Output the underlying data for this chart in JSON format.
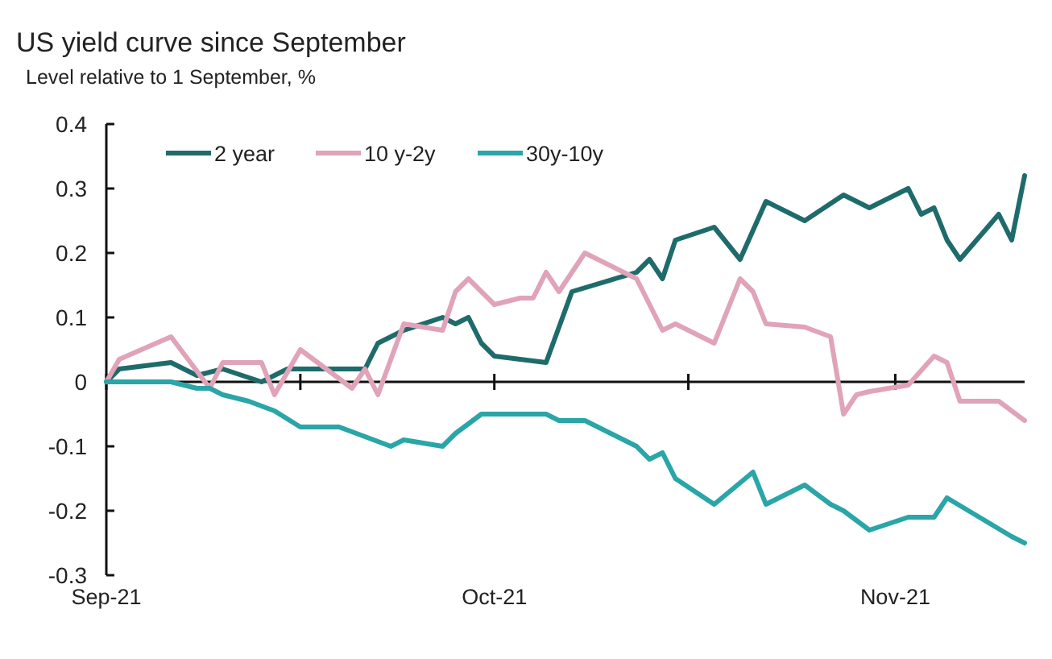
{
  "chart_data": {
    "type": "line",
    "title": "US yield curve since September",
    "subtitle": "Level relative to 1 September, %",
    "xlim": [
      "2021-09-01",
      "2021-11-11"
    ],
    "xticks": [
      {
        "value": "2021-09-01",
        "label": "Sep-21"
      },
      {
        "value": "2021-09-16",
        "label": null
      },
      {
        "value": "2021-10-01",
        "label": "Oct-21"
      },
      {
        "value": "2021-10-16",
        "label": null
      },
      {
        "value": "2021-11-01",
        "label": "Nov-21"
      }
    ],
    "ylim": [
      -0.3,
      0.4
    ],
    "yticks": [
      -0.3,
      -0.2,
      -0.1,
      0,
      0.1,
      0.2,
      0.3,
      0.4
    ],
    "legend": "top",
    "line_style": "solid",
    "marker": "none",
    "series": [
      {
        "name": "2 year",
        "color": "#1f6b6b",
        "x": [
          "2021-09-01",
          "2021-09-02",
          "2021-09-06",
          "2021-09-08",
          "2021-09-10",
          "2021-09-13",
          "2021-09-15",
          "2021-09-21",
          "2021-09-22",
          "2021-09-24",
          "2021-09-27",
          "2021-09-28",
          "2021-09-29",
          "2021-09-30",
          "2021-10-01",
          "2021-10-03",
          "2021-10-05",
          "2021-10-07",
          "2021-10-12",
          "2021-10-13",
          "2021-10-14",
          "2021-10-15",
          "2021-10-18",
          "2021-10-20",
          "2021-10-22",
          "2021-10-25",
          "2021-10-28",
          "2021-10-30",
          "2021-11-02",
          "2021-11-03",
          "2021-11-04",
          "2021-11-05",
          "2021-11-06",
          "2021-11-09",
          "2021-11-10",
          "2021-11-11"
        ],
        "values": [
          0,
          0.02,
          0.03,
          0.01,
          0.02,
          0,
          0.02,
          0.02,
          0.06,
          0.08,
          0.1,
          0.09,
          0.1,
          0.06,
          0.04,
          0.035,
          0.03,
          0.14,
          0.17,
          0.19,
          0.16,
          0.22,
          0.24,
          0.19,
          0.28,
          0.25,
          0.29,
          0.27,
          0.3,
          0.26,
          0.27,
          0.22,
          0.19,
          0.26,
          0.22,
          0.32
        ]
      },
      {
        "name": "10 y-2y",
        "color": "#e0a3b8",
        "x": [
          "2021-09-01",
          "2021-09-02",
          "2021-09-06",
          "2021-09-09",
          "2021-09-10",
          "2021-09-13",
          "2021-09-14",
          "2021-09-16",
          "2021-09-20",
          "2021-09-21",
          "2021-09-22",
          "2021-09-24",
          "2021-09-27",
          "2021-09-28",
          "2021-09-29",
          "2021-10-01",
          "2021-10-03",
          "2021-10-04",
          "2021-10-05",
          "2021-10-06",
          "2021-10-08",
          "2021-10-12",
          "2021-10-14",
          "2021-10-15",
          "2021-10-18",
          "2021-10-20",
          "2021-10-21",
          "2021-10-22",
          "2021-10-25",
          "2021-10-27",
          "2021-10-28",
          "2021-10-29",
          "2021-10-30",
          "2021-11-02",
          "2021-11-04",
          "2021-11-05",
          "2021-11-06",
          "2021-11-09",
          "2021-11-11"
        ],
        "values": [
          0,
          0.035,
          0.07,
          -0.01,
          0.03,
          0.03,
          -0.02,
          0.05,
          -0.01,
          0.02,
          -0.02,
          0.09,
          0.08,
          0.14,
          0.16,
          0.12,
          0.13,
          0.13,
          0.17,
          0.14,
          0.2,
          0.16,
          0.08,
          0.09,
          0.06,
          0.16,
          0.14,
          0.09,
          0.085,
          0.07,
          -0.05,
          -0.02,
          -0.015,
          -0.005,
          0.04,
          0.03,
          -0.03,
          -0.03,
          -0.06
        ]
      },
      {
        "name": "30y-10y",
        "color": "#2aa5a8",
        "x": [
          "2021-09-01",
          "2021-09-06",
          "2021-09-08",
          "2021-09-09",
          "2021-09-10",
          "2021-09-12",
          "2021-09-14",
          "2021-09-16",
          "2021-09-19",
          "2021-09-23",
          "2021-09-24",
          "2021-09-27",
          "2021-09-28",
          "2021-09-30",
          "2021-10-03",
          "2021-10-05",
          "2021-10-06",
          "2021-10-08",
          "2021-10-12",
          "2021-10-13",
          "2021-10-14",
          "2021-10-15",
          "2021-10-18",
          "2021-10-21",
          "2021-10-22",
          "2021-10-25",
          "2021-10-27",
          "2021-10-28",
          "2021-10-30",
          "2021-11-02",
          "2021-11-04",
          "2021-11-05",
          "2021-11-10",
          "2021-11-11"
        ],
        "values": [
          0,
          0,
          -0.01,
          -0.01,
          -0.02,
          -0.03,
          -0.045,
          -0.07,
          -0.07,
          -0.1,
          -0.09,
          -0.1,
          -0.08,
          -0.05,
          -0.05,
          -0.05,
          -0.06,
          -0.06,
          -0.1,
          -0.12,
          -0.11,
          -0.15,
          -0.19,
          -0.14,
          -0.19,
          -0.16,
          -0.19,
          -0.2,
          -0.23,
          -0.21,
          -0.21,
          -0.18,
          -0.24,
          -0.25
        ]
      }
    ]
  }
}
